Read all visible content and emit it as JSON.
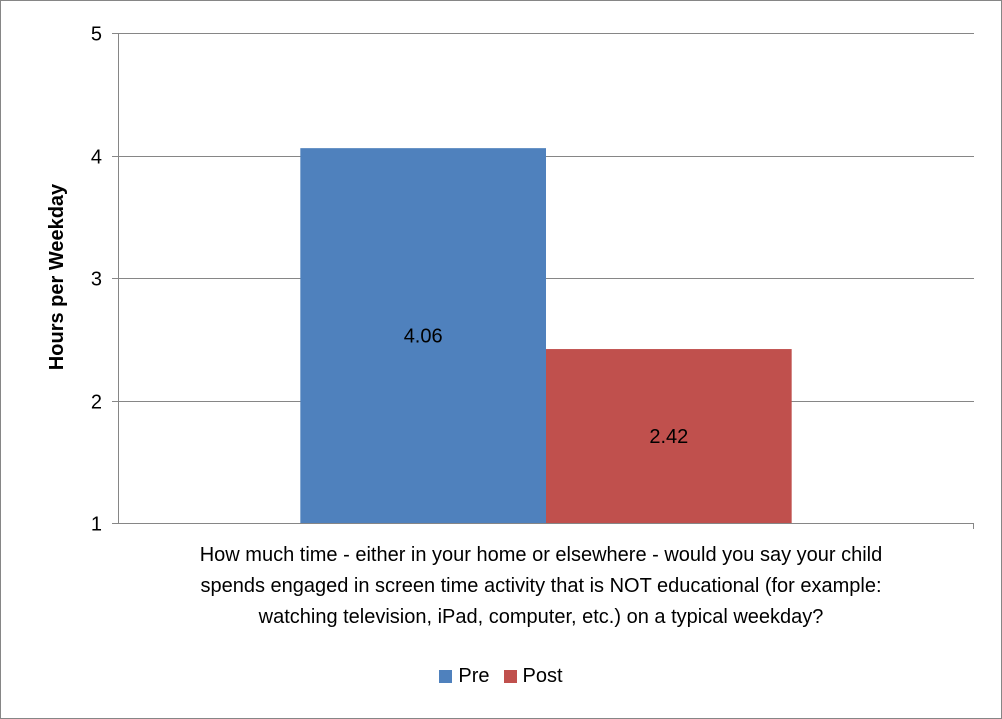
{
  "chart_data": {
    "type": "bar",
    "categories": [
      "How much time - either in your home or elsewhere - would you say your child spends engaged in screen time activity that is NOT educational (for example: watching television, iPad, computer, etc.) on a typical weekday?"
    ],
    "series": [
      {
        "name": "Pre",
        "values": [
          4.06
        ],
        "color": "#4F81BD",
        "label": "4.06"
      },
      {
        "name": "Post",
        "values": [
          2.42
        ],
        "color": "#C0504D",
        "label": "2.42"
      }
    ],
    "ylabel": "Hours per Weekday",
    "ylim": [
      1,
      5
    ],
    "yticks": [
      "1",
      "2",
      "3",
      "4",
      "5"
    ],
    "grid": true,
    "legend": "bottom",
    "category_lines": [
      "How much time - either in your home or elsewhere - would you say your child",
      "spends engaged in screen time activity that is NOT educational (for example:",
      "watching television, iPad, computer, etc.) on a typical weekday?"
    ]
  }
}
